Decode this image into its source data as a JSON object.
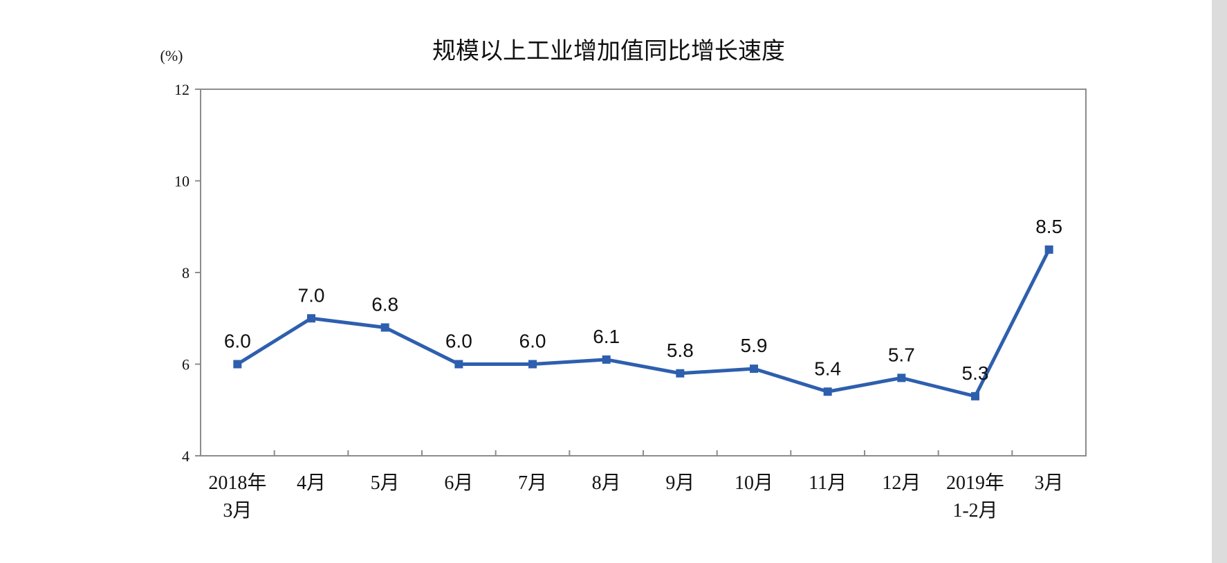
{
  "chart_data": {
    "type": "line",
    "title": "规模以上工业增加值同比增长速度",
    "unit": "(%)",
    "categories": [
      [
        "2018年",
        "3月"
      ],
      [
        "4月"
      ],
      [
        "5月"
      ],
      [
        "6月"
      ],
      [
        "7月"
      ],
      [
        "8月"
      ],
      [
        "9月"
      ],
      [
        "10月"
      ],
      [
        "11月"
      ],
      [
        "12月"
      ],
      [
        "2019年",
        "1-2月"
      ],
      [
        "3月"
      ]
    ],
    "series": [
      {
        "values": [
          6.0,
          7.0,
          6.8,
          6.0,
          6.0,
          6.1,
          5.8,
          5.9,
          5.4,
          5.7,
          5.3,
          8.5
        ],
        "labels": [
          "6.0",
          "7.0",
          "6.8",
          "6.0",
          "6.0",
          "6.1",
          "5.8",
          "5.9",
          "5.4",
          "5.7",
          "5.3",
          "8.5"
        ]
      }
    ],
    "ylim": [
      4,
      12
    ],
    "yticks": [
      4,
      6,
      8,
      10,
      12
    ],
    "grid": false,
    "legend": "none",
    "line_color": "#2e5fae",
    "marker": "square"
  }
}
